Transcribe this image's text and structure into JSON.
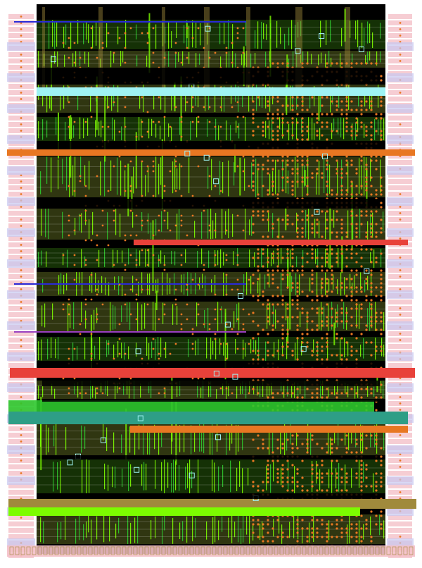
{
  "palette": {
    "background": "#ffffff",
    "core": "#000000",
    "metal_green": "#7cfc00",
    "metal_green_dark": "#3c8c10",
    "olive": "#8a9a30",
    "via_orange": "#e87722",
    "contact_red": "#e8413a",
    "teal": "#2e9e86",
    "bright_green": "#2ec82e",
    "khaki": "#a08a3c",
    "cyan_outline": "#9ff3f3",
    "pink_io": "#f4c0c8",
    "lavender": "#c8c8f0",
    "blue_line": "#2a2ad8",
    "purple": "#9a40c0",
    "white_line": "#e6e6e6"
  },
  "layer_legend": [
    {
      "id": "core",
      "icon": "core-block"
    },
    {
      "id": "metal",
      "icon": "metal-stripe"
    },
    {
      "id": "via",
      "icon": "via-dot"
    },
    {
      "id": "power_rail",
      "icon": "power-rail-bar"
    },
    {
      "id": "io_ring",
      "icon": "io-pad"
    }
  ],
  "power_rails": [
    {
      "color": "#e87722",
      "role": "rail-orange-1"
    },
    {
      "color": "#e8413a",
      "role": "rail-red-1"
    },
    {
      "color": "#e8413a",
      "role": "rail-red-2"
    },
    {
      "color": "#2e9e86",
      "role": "rail-teal"
    },
    {
      "color": "#e87722",
      "role": "rail-orange-2"
    },
    {
      "color": "#a08a3c",
      "role": "rail-khaki"
    },
    {
      "color": "#9ff3f3",
      "role": "rail-cyan"
    }
  ]
}
